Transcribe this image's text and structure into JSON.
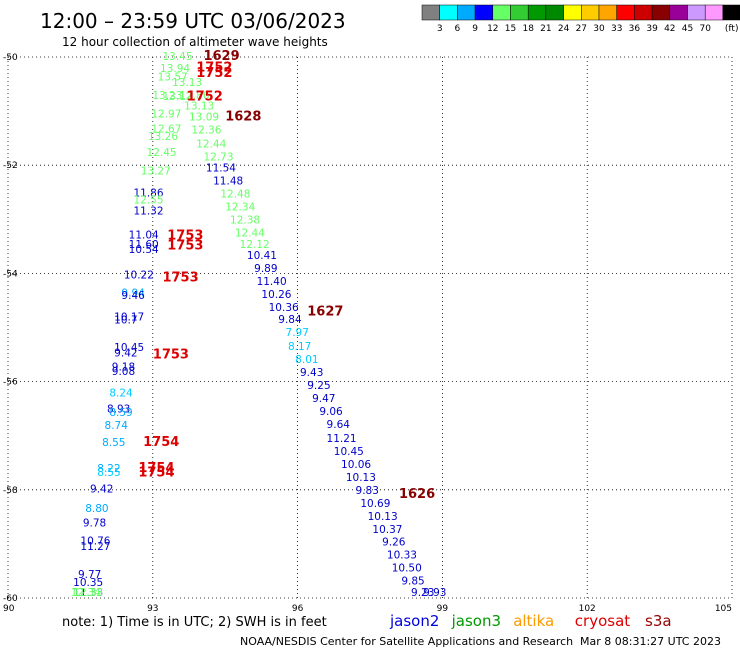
{
  "header": {
    "title": "12:00 – 23:59 UTC 03/06/2023",
    "subtitle": "12 hour collection of altimeter wave heights"
  },
  "legend": {
    "unit": "(ft)",
    "colors": [
      "#808080",
      "#00ffff",
      "#00aaff",
      "#0000ff",
      "#66ff66",
      "#33cc33",
      "#009900",
      "#008800",
      "#ffff00",
      "#ffcc00",
      "#ffa500",
      "#ff0000",
      "#cc0000",
      "#880000",
      "#990099",
      "#cc99ff",
      "#ff99ff",
      "#000000"
    ],
    "labels": [
      "3",
      "6",
      "9",
      "12",
      "15",
      "18",
      "21",
      "24",
      "27",
      "30",
      "33",
      "36",
      "39",
      "42",
      "45",
      "70"
    ]
  },
  "map": {
    "lon_ticks": [
      "90",
      "93",
      "96",
      "99",
      "102",
      "105"
    ],
    "lat_ticks": [
      "-50",
      "-52",
      "-54",
      "-56",
      "-58",
      "-60"
    ],
    "lon_range": [
      90,
      105
    ],
    "lat_range": [
      -50,
      -60
    ]
  },
  "labels_west": [
    {
      "t": "13.45",
      "c": "#66ff66",
      "lon": 93.2,
      "lat": -49.98
    },
    {
      "t": "13.94",
      "c": "#66ff66",
      "lon": 93.15,
      "lat": -50.2
    },
    {
      "t": "13.57",
      "c": "#66ff66",
      "lon": 93.1,
      "lat": -50.36
    },
    {
      "t": "13.13",
      "c": "#66ff66",
      "lon": 93.4,
      "lat": -50.46
    },
    {
      "t": "13.23",
      "c": "#66ff66",
      "lon": 92.99,
      "lat": -50.7
    },
    {
      "t": "13.12",
      "c": "#66ff66",
      "lon": 93.2,
      "lat": -50.72
    },
    {
      "t": "12.97",
      "c": "#66ff66",
      "lon": 92.97,
      "lat": -51.04
    },
    {
      "t": "12.67",
      "c": "#66ff66",
      "lon": 92.97,
      "lat": -51.32
    },
    {
      "t": "13.26",
      "c": "#66ff66",
      "lon": 92.9,
      "lat": -51.46
    },
    {
      "t": "12.45",
      "c": "#66ff66",
      "lon": 92.87,
      "lat": -51.76
    },
    {
      "t": "13.27",
      "c": "#66ff66",
      "lon": 92.75,
      "lat": -52.1
    },
    {
      "t": "11.86",
      "c": "#0000cc",
      "lon": 92.6,
      "lat": -52.5
    },
    {
      "t": "12.55",
      "c": "#66ff66",
      "lon": 92.6,
      "lat": -52.63
    },
    {
      "t": "11.32",
      "c": "#0000cc",
      "lon": 92.6,
      "lat": -52.84
    },
    {
      "t": "11.04",
      "c": "#0000cc",
      "lon": 92.5,
      "lat": -53.28
    },
    {
      "t": "11.60",
      "c": "#0000cc",
      "lon": 92.5,
      "lat": -53.46
    },
    {
      "t": "10.54",
      "c": "#0000cc",
      "lon": 92.5,
      "lat": -53.55
    },
    {
      "t": "10.22",
      "c": "#0000cc",
      "lon": 92.4,
      "lat": -54.02
    },
    {
      "t": "9.94",
      "c": "#00aaff",
      "lon": 92.35,
      "lat": -54.35
    },
    {
      "t": "9.46",
      "c": "#0000cc",
      "lon": 92.35,
      "lat": -54.4
    },
    {
      "t": "10.17",
      "c": "#0000cc",
      "lon": 92.2,
      "lat": -54.8
    },
    {
      "t": "10.7",
      "c": "#0000cc",
      "lon": 92.2,
      "lat": -54.85
    },
    {
      "t": "10.45",
      "c": "#0000cc",
      "lon": 92.2,
      "lat": -55.36
    },
    {
      "t": "9.42",
      "c": "#0000cc",
      "lon": 92.2,
      "lat": -55.46
    },
    {
      "t": "9.18",
      "c": "#0000cc",
      "lon": 92.15,
      "lat": -55.72
    },
    {
      "t": "9.08",
      "c": "#0000cc",
      "lon": 92.15,
      "lat": -55.8
    },
    {
      "t": "8.24",
      "c": "#00ccff",
      "lon": 92.1,
      "lat": -56.2
    },
    {
      "t": "8.93",
      "c": "#0000cc",
      "lon": 92.05,
      "lat": -56.5
    },
    {
      "t": "8.59",
      "c": "#00aaff",
      "lon": 92.1,
      "lat": -56.56
    },
    {
      "t": "8.74",
      "c": "#00aaff",
      "lon": 92.0,
      "lat": -56.8
    },
    {
      "t": "8.55",
      "c": "#00aaff",
      "lon": 91.95,
      "lat": -57.12
    },
    {
      "t": "8.22",
      "c": "#00aaff",
      "lon": 91.85,
      "lat": -57.6
    },
    {
      "t": "8.55",
      "c": "#00ccff",
      "lon": 91.85,
      "lat": -57.67
    },
    {
      "t": "9.42",
      "c": "#0000cc",
      "lon": 91.7,
      "lat": -57.98
    },
    {
      "t": "8.80",
      "c": "#00aaff",
      "lon": 91.6,
      "lat": -58.34
    },
    {
      "t": "9.78",
      "c": "#0000cc",
      "lon": 91.55,
      "lat": -58.6
    },
    {
      "t": "10.76",
      "c": "#0000cc",
      "lon": 91.5,
      "lat": -58.94
    },
    {
      "t": "11.27",
      "c": "#0000cc",
      "lon": 91.5,
      "lat": -59.04
    },
    {
      "t": "9.77",
      "c": "#0000cc",
      "lon": 91.45,
      "lat": -59.56
    },
    {
      "t": "10.35",
      "c": "#0000cc",
      "lon": 91.35,
      "lat": -59.7
    },
    {
      "t": "11.33",
      "c": "#0000cc",
      "lon": 91.35,
      "lat": -59.98
    },
    {
      "t": "12.33",
      "c": "#66ff66",
      "lon": 91.35,
      "lat": -60.05
    },
    {
      "t": "12.34",
      "c": "#66ff66",
      "lon": 91.3,
      "lat": -60.2
    }
  ],
  "labels_east": [
    {
      "t": "12.86",
      "c": "#66ff66",
      "lon": 93.55,
      "lat": -50.7
    },
    {
      "t": "13.13",
      "c": "#66ff66",
      "lon": 93.65,
      "lat": -50.9
    },
    {
      "t": "13.09",
      "c": "#66ff66",
      "lon": 93.75,
      "lat": -51.1
    },
    {
      "t": "12.36",
      "c": "#66ff66",
      "lon": 93.8,
      "lat": -51.34
    },
    {
      "t": "12.44",
      "c": "#66ff66",
      "lon": 93.9,
      "lat": -51.6
    },
    {
      "t": "12.73",
      "c": "#66ff66",
      "lon": 94.05,
      "lat": -51.84
    },
    {
      "t": "11.54",
      "c": "#0000cc",
      "lon": 94.1,
      "lat": -52.04
    },
    {
      "t": "11.48",
      "c": "#0000cc",
      "lon": 94.25,
      "lat": -52.28
    },
    {
      "t": "12.48",
      "c": "#66ff66",
      "lon": 94.4,
      "lat": -52.52
    },
    {
      "t": "12.34",
      "c": "#66ff66",
      "lon": 94.5,
      "lat": -52.76
    },
    {
      "t": "12.38",
      "c": "#66ff66",
      "lon": 94.6,
      "lat": -53.0
    },
    {
      "t": "12.44",
      "c": "#66ff66",
      "lon": 94.7,
      "lat": -53.24
    },
    {
      "t": "12.12",
      "c": "#66ff66",
      "lon": 94.8,
      "lat": -53.46
    },
    {
      "t": "10.41",
      "c": "#0000cc",
      "lon": 94.95,
      "lat": -53.66
    },
    {
      "t": "9.89",
      "c": "#0000cc",
      "lon": 95.1,
      "lat": -53.9
    },
    {
      "t": "11.40",
      "c": "#0000cc",
      "lon": 95.15,
      "lat": -54.14
    },
    {
      "t": "10.26",
      "c": "#0000cc",
      "lon": 95.25,
      "lat": -54.38
    },
    {
      "t": "10.36",
      "c": "#0000cc",
      "lon": 95.4,
      "lat": -54.62
    },
    {
      "t": "9.84",
      "c": "#0000cc",
      "lon": 95.6,
      "lat": -54.84
    },
    {
      "t": "7.97",
      "c": "#00ccff",
      "lon": 95.75,
      "lat": -55.08
    },
    {
      "t": "8.17",
      "c": "#00ccff",
      "lon": 95.8,
      "lat": -55.34
    },
    {
      "t": "8.01",
      "c": "#00ccff",
      "lon": 95.95,
      "lat": -55.58
    },
    {
      "t": "9.43",
      "c": "#0000cc",
      "lon": 96.05,
      "lat": -55.82
    },
    {
      "t": "9.25",
      "c": "#0000cc",
      "lon": 96.2,
      "lat": -56.06
    },
    {
      "t": "9.47",
      "c": "#0000cc",
      "lon": 96.3,
      "lat": -56.3
    },
    {
      "t": "9.06",
      "c": "#0000cc",
      "lon": 96.45,
      "lat": -56.54
    },
    {
      "t": "9.64",
      "c": "#0000cc",
      "lon": 96.6,
      "lat": -56.78
    },
    {
      "t": "11.21",
      "c": "#0000cc",
      "lon": 96.6,
      "lat": -57.04
    },
    {
      "t": "10.45",
      "c": "#0000cc",
      "lon": 96.75,
      "lat": -57.28
    },
    {
      "t": "10.06",
      "c": "#0000cc",
      "lon": 96.9,
      "lat": -57.52
    },
    {
      "t": "10.13",
      "c": "#0000cc",
      "lon": 97.0,
      "lat": -57.76
    },
    {
      "t": "9.83",
      "c": "#0000cc",
      "lon": 97.2,
      "lat": -58.0
    },
    {
      "t": "10.69",
      "c": "#0000cc",
      "lon": 97.3,
      "lat": -58.24
    },
    {
      "t": "10.13",
      "c": "#0000cc",
      "lon": 97.45,
      "lat": -58.48
    },
    {
      "t": "10.37",
      "c": "#0000cc",
      "lon": 97.55,
      "lat": -58.72
    },
    {
      "t": "9.26",
      "c": "#0000cc",
      "lon": 97.75,
      "lat": -58.96
    },
    {
      "t": "10.33",
      "c": "#0000cc",
      "lon": 97.85,
      "lat": -59.2
    },
    {
      "t": "10.50",
      "c": "#0000cc",
      "lon": 97.95,
      "lat": -59.44
    },
    {
      "t": "9.85",
      "c": "#0000cc",
      "lon": 98.15,
      "lat": -59.68
    },
    {
      "t": "9.23",
      "c": "#0000cc",
      "lon": 98.35,
      "lat": -59.92
    },
    {
      "t": "9.93",
      "c": "#0000cc",
      "lon": 98.6,
      "lat": -60.16
    }
  ],
  "time_labels": [
    {
      "t": "1629",
      "c": "#880000",
      "lon": 94.05,
      "lat": -49.98
    },
    {
      "t": "1752",
      "c": "#dd0000",
      "lon": 93.9,
      "lat": -50.19
    },
    {
      "t": "1752",
      "c": "#dd0000",
      "lon": 93.9,
      "lat": -50.3
    },
    {
      "t": "1752",
      "c": "#dd0000",
      "lon": 93.7,
      "lat": -50.73
    },
    {
      "t": "1628",
      "c": "#880000",
      "lon": 94.5,
      "lat": -51.1
    },
    {
      "t": "1753",
      "c": "#dd0000",
      "lon": 93.3,
      "lat": -53.3
    },
    {
      "t": "1753",
      "c": "#dd0000",
      "lon": 93.3,
      "lat": -53.48
    },
    {
      "t": "1753",
      "c": "#dd0000",
      "lon": 93.2,
      "lat": -54.08
    },
    {
      "t": "1627",
      "c": "#880000",
      "lon": 96.2,
      "lat": -54.7
    },
    {
      "t": "1753",
      "c": "#dd0000",
      "lon": 93.0,
      "lat": -55.5
    },
    {
      "t": "1754",
      "c": "#dd0000",
      "lon": 92.8,
      "lat": -57.12
    },
    {
      "t": "1754",
      "c": "#dd0000",
      "lon": 92.7,
      "lat": -57.6
    },
    {
      "t": "1754",
      "c": "#dd0000",
      "lon": 92.7,
      "lat": -57.68
    },
    {
      "t": "1626",
      "c": "#880000",
      "lon": 98.1,
      "lat": -58.08
    }
  ],
  "footer": {
    "note": "note:  1) Time is in UTC;  2) SWH is in feet",
    "satellites": [
      {
        "name": "jason2",
        "color": "#0000dd"
      },
      {
        "name": "jason3",
        "color": "#009900"
      },
      {
        "name": "altika",
        "color": "#ff9900"
      },
      {
        "name": "cryosat",
        "color": "#dd0000"
      },
      {
        "name": "s3a",
        "color": "#990000"
      }
    ],
    "credit": "NOAA/NESDIS Center for Satellite Applications and Research",
    "generated": "Mar  8 08:31:27 UTC 2023"
  }
}
